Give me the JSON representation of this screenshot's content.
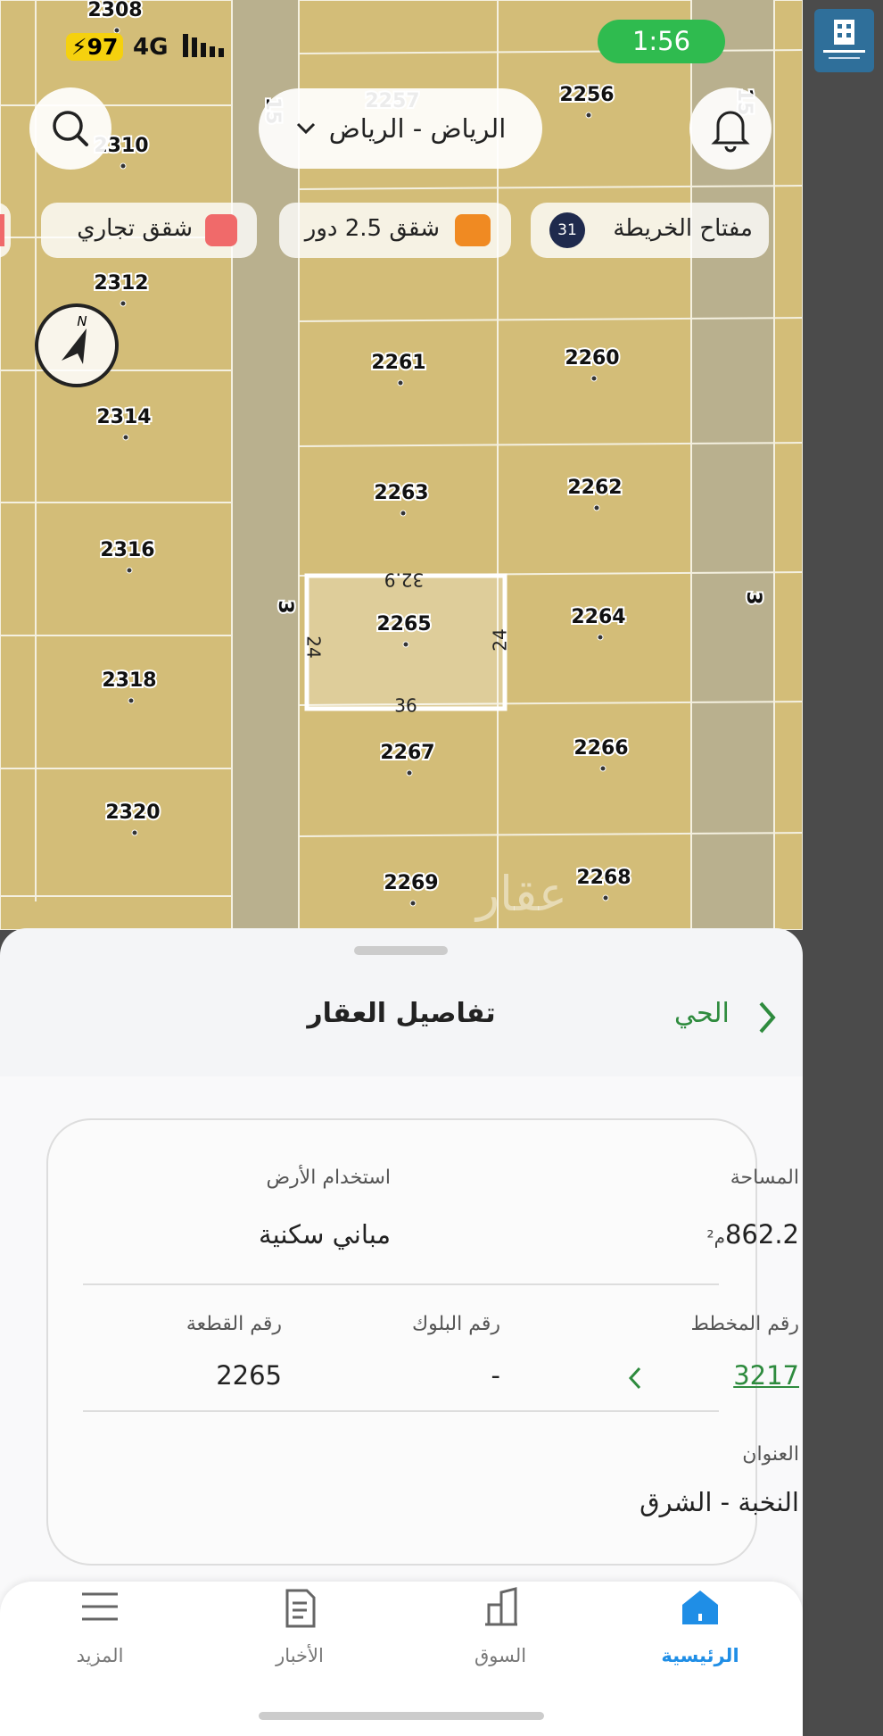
{
  "status_bar": {
    "battery": "97",
    "network": "4G",
    "time": "1:56"
  },
  "map": {
    "location": "الرياض - الرياض",
    "legend_chips": [
      {
        "label": "مفتاح الخريطة",
        "badge": "31"
      },
      {
        "label": "شقق 2.5 دور"
      },
      {
        "label": "شقق تجاري"
      }
    ],
    "compass": "N",
    "plots": [
      "2308",
      "2257",
      "2256",
      "2310",
      "2312",
      "2261",
      "2260",
      "2314",
      "2263",
      "2262",
      "2316",
      "2265",
      "2264",
      "2318",
      "2267",
      "2266",
      "2320",
      "2269",
      "2268"
    ],
    "dimensions": [
      "32.9",
      "24",
      "24",
      "36"
    ],
    "streets": [
      "15",
      "15",
      "3",
      "3"
    ],
    "watermark": "عقار"
  },
  "sheet": {
    "title": "تفاصيل العقار",
    "back": "الحي",
    "area": {
      "label": "المساحة",
      "value": "862.2",
      "unit": "م²"
    },
    "land_use": {
      "label": "استخدام الأرض",
      "value": "مباني سكنية"
    },
    "plan": {
      "label": "رقم المخطط",
      "value": "3217"
    },
    "block": {
      "label": "رقم البلوك",
      "value": "-"
    },
    "parcel": {
      "label": "رقم القطعة",
      "value": "2265"
    },
    "address": {
      "label": "العنوان",
      "value": "النخبة - الشرق"
    }
  },
  "nav": [
    {
      "label": "الرئيسية"
    },
    {
      "label": "السوق"
    },
    {
      "label": "الأخبار"
    },
    {
      "label": "المزيد"
    }
  ]
}
